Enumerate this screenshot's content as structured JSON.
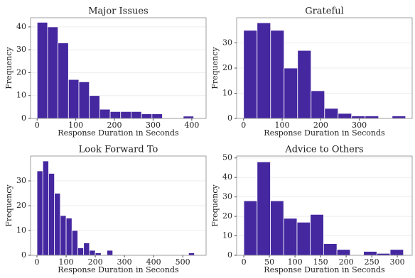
{
  "chart_data": [
    {
      "type": "histogram",
      "title": "Major Issues",
      "x_label": "Response Duration in Seconds",
      "y_label": "Frequency",
      "color": "#4527a0",
      "bins": [
        0,
        27,
        54,
        81,
        108,
        135,
        162,
        189,
        216,
        243,
        270,
        297,
        324,
        351,
        378,
        405
      ],
      "values": [
        42,
        40,
        33,
        17,
        16,
        10,
        4,
        3,
        3,
        3,
        2,
        2,
        0,
        0,
        1
      ],
      "xlim": [
        -17,
        437
      ],
      "xticks": [
        0,
        100,
        200,
        300,
        400
      ],
      "ylim": [
        0,
        44
      ],
      "yticks": [
        0,
        10,
        20,
        30,
        40
      ],
      "grid": true
    },
    {
      "type": "histogram",
      "title": "Grateful",
      "x_label": "Response Duration in Seconds",
      "y_label": "Frequency",
      "color": "#4527a0",
      "bins": [
        0,
        35,
        70,
        105,
        140,
        175,
        210,
        245,
        280,
        315,
        350,
        385,
        420
      ],
      "values": [
        35,
        38,
        35,
        20,
        27,
        11,
        4,
        2,
        1,
        1,
        0,
        1
      ],
      "xlim": [
        -18,
        437
      ],
      "xticks": [
        0,
        100,
        200,
        300
      ],
      "ylim": [
        0,
        40
      ],
      "yticks": [
        0,
        10,
        20,
        30
      ],
      "grid": true
    },
    {
      "type": "histogram",
      "title": "Look Forward To",
      "x_label": "Response Duration in Seconds",
      "y_label": "Frequency",
      "color": "#4527a0",
      "bins": [
        0,
        20,
        40,
        60,
        80,
        100,
        120,
        140,
        160,
        180,
        200,
        220,
        240,
        260,
        280,
        300,
        320,
        340,
        360,
        380,
        400,
        420,
        440,
        460,
        480,
        500,
        520,
        540
      ],
      "values": [
        34,
        38,
        33,
        25,
        16,
        15,
        10,
        3,
        5,
        2,
        1,
        0,
        2,
        0,
        0,
        0,
        0,
        0,
        0,
        0,
        0,
        0,
        0,
        0,
        0,
        0,
        1
      ],
      "xlim": [
        -22,
        580
      ],
      "xticks": [
        0,
        100,
        200,
        300,
        400,
        500
      ],
      "ylim": [
        0,
        40
      ],
      "yticks": [
        0,
        10,
        20,
        30
      ],
      "grid": true
    },
    {
      "type": "histogram",
      "title": "Advice to Others",
      "x_label": "Response Duration in Seconds",
      "y_label": "Frequency",
      "color": "#4527a0",
      "bins": [
        0,
        26,
        52,
        78,
        104,
        130,
        156,
        182,
        208,
        234,
        260,
        286,
        312
      ],
      "values": [
        28,
        48,
        28,
        19,
        17,
        21,
        6,
        3,
        0,
        2,
        1,
        3
      ],
      "xlim": [
        -14,
        329
      ],
      "xticks": [
        0,
        50,
        100,
        150,
        200,
        250,
        300
      ],
      "ylim": [
        0,
        51
      ],
      "yticks": [
        0,
        10,
        20,
        30,
        40,
        50
      ],
      "grid": true
    }
  ]
}
